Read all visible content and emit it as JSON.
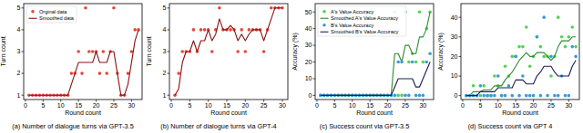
{
  "chart_data": [
    {
      "type": "line",
      "title": "(a) Number of dialogue turns via GPT-3.5",
      "x_label": "Round count",
      "y_label": "Turn count",
      "x": [
        1,
        2,
        3,
        4,
        5,
        6,
        7,
        8,
        9,
        10,
        11,
        12,
        13,
        14,
        15,
        16,
        17,
        18,
        19,
        20,
        21,
        22,
        23,
        24,
        25,
        26,
        27,
        28,
        29,
        30,
        31,
        32
      ],
      "xlim": [
        -0.5,
        33
      ],
      "xticks": [
        0,
        5,
        10,
        15,
        20,
        25,
        30
      ],
      "ylim": [
        0.8,
        5.2
      ],
      "yticks": [
        1,
        2,
        3,
        4,
        5
      ],
      "legend": "upper left",
      "series": [
        {
          "name": "Orginal data",
          "type": "scatter",
          "marker": "circle",
          "color": "#e8453c",
          "values": [
            1,
            1,
            1,
            1,
            1,
            1,
            1,
            1,
            1,
            1,
            1,
            1,
            2,
            2,
            3,
            2,
            5,
            3,
            3,
            3,
            2,
            3,
            2,
            3,
            5,
            2,
            1,
            1,
            2,
            3,
            4,
            4
          ]
        },
        {
          "name": "Smoothed data",
          "type": "line",
          "color": "#8b1010",
          "values": [
            1,
            1,
            1,
            1,
            1,
            1,
            1,
            1,
            1,
            1,
            1,
            1,
            1.5,
            2,
            2.5,
            2.5,
            2.5,
            2.5,
            2.5,
            3,
            2.5,
            2.5,
            2.5,
            3,
            3,
            2,
            1,
            1,
            1.5,
            2.5,
            3.5,
            4
          ]
        }
      ]
    },
    {
      "type": "line",
      "title": "(b) Number of dialogue turns via GPT-4",
      "x_label": "Round count",
      "y_label": "Turn count",
      "x": [
        1,
        2,
        3,
        4,
        5,
        6,
        7,
        8,
        9,
        10,
        11,
        12,
        13,
        14,
        15,
        16,
        17,
        18,
        19,
        20,
        21,
        22,
        23,
        24,
        25,
        26,
        27,
        28,
        29,
        30
      ],
      "xlim": [
        -0.5,
        31.5
      ],
      "xticks": [
        0,
        5,
        10,
        15,
        20,
        25,
        30
      ],
      "ylim": [
        0.8,
        5.2
      ],
      "yticks": [
        1,
        2,
        3,
        4,
        5
      ],
      "series": [
        {
          "type": "scatter",
          "marker": "circle",
          "color": "#e8453c",
          "values": [
            1,
            2,
            3,
            3,
            3,
            4,
            3,
            4,
            4,
            4,
            3,
            4,
            5,
            4,
            4,
            4,
            4,
            3,
            4,
            3,
            4,
            4,
            4,
            4,
            3,
            4,
            5,
            5,
            5,
            5
          ]
        },
        {
          "type": "line",
          "color": "#8b1010",
          "values": [
            1,
            1.3,
            2.5,
            3,
            3,
            3.5,
            3,
            3.5,
            3.5,
            4,
            3.5,
            3.8,
            4.5,
            4,
            4,
            4.2,
            4,
            3.5,
            3.8,
            3.5,
            3.8,
            4,
            4,
            4,
            3.5,
            4,
            4.5,
            5,
            5,
            5
          ]
        }
      ]
    },
    {
      "type": "line",
      "title": "(c) Success count via GPT-3.5",
      "x_label": "Round count",
      "y_label": "Accuracy (%)",
      "x": [
        1,
        2,
        3,
        4,
        5,
        6,
        7,
        8,
        9,
        10,
        11,
        12,
        13,
        14,
        15,
        16,
        17,
        18,
        19,
        20,
        21,
        22,
        23,
        24,
        25,
        26,
        27,
        28,
        29,
        30,
        31,
        32
      ],
      "xlim": [
        -0.5,
        33
      ],
      "xticks": [
        0,
        5,
        10,
        15,
        20,
        25,
        30
      ],
      "ylim": [
        -2.5,
        55
      ],
      "yticks": [
        0,
        10,
        20,
        30,
        40,
        50
      ],
      "legend": "upper left",
      "series": [
        {
          "name": "A's Value Accuracy",
          "type": "scatter",
          "marker": "circle",
          "color": "#55d055",
          "values": [
            0,
            0,
            0,
            0,
            0,
            0,
            0,
            0,
            0,
            0,
            0,
            0,
            0,
            0,
            0,
            0,
            0,
            0,
            0,
            0,
            0,
            50,
            0,
            0,
            50,
            20,
            25,
            20,
            50,
            20,
            40,
            50
          ]
        },
        {
          "name": "Smoothed A's Value Accuracy",
          "type": "line",
          "color": "#2e8b2e",
          "values": [
            0,
            0,
            0,
            0,
            0,
            0,
            0,
            0,
            0,
            0,
            0,
            0,
            0,
            0,
            0,
            0,
            0,
            0,
            0,
            0,
            0,
            25,
            25,
            20,
            30,
            30,
            25,
            25,
            35,
            35,
            40,
            50
          ]
        },
        {
          "name": "B's Value Accuracy",
          "type": "scatter",
          "marker": "circle",
          "color": "#3a9ad9",
          "values": [
            0,
            0,
            0,
            0,
            0,
            0,
            0,
            0,
            0,
            0,
            0,
            0,
            0,
            0,
            0,
            0,
            0,
            0,
            0,
            0,
            0,
            0,
            20,
            20,
            0,
            0,
            20,
            0,
            0,
            0,
            20,
            25
          ]
        },
        {
          "name": "Smoothed B's Value Accuracy",
          "type": "line",
          "color": "#1c1c5c",
          "values": [
            0,
            0,
            0,
            0,
            0,
            0,
            0,
            0,
            0,
            0,
            0,
            0,
            0,
            0,
            0,
            0,
            0,
            0,
            0,
            0,
            0,
            5,
            10,
            10,
            10,
            10,
            10,
            5,
            5,
            10,
            15,
            20
          ]
        }
      ]
    },
    {
      "type": "line",
      "title": "(d) Success count via GPT 4",
      "x_label": "Round count",
      "y_label": "Accuracy (%)",
      "x": [
        1,
        2,
        3,
        4,
        5,
        6,
        7,
        8,
        9,
        10,
        11,
        12,
        13,
        14,
        15,
        16,
        17,
        18,
        19,
        20,
        21,
        22,
        23,
        24,
        25,
        26,
        27,
        28,
        29,
        30,
        31,
        32
      ],
      "xlim": [
        -0.5,
        33
      ],
      "xticks": [
        0,
        5,
        10,
        15,
        20,
        25,
        30
      ],
      "ylim": [
        -2,
        47
      ],
      "yticks": [
        0,
        10,
        20,
        30,
        40
      ],
      "series": [
        {
          "type": "scatter",
          "marker": "circle",
          "color": "#55d055",
          "values": [
            0,
            0,
            5,
            0,
            0,
            5,
            0,
            0,
            10,
            5,
            0,
            15,
            10,
            20,
            20,
            25,
            25,
            35,
            15,
            20,
            30,
            25,
            20,
            20,
            10,
            20,
            40,
            30,
            25,
            30,
            35,
            25
          ]
        },
        {
          "type": "line",
          "color": "#2e8b2e",
          "values": [
            0,
            0,
            2,
            2,
            2,
            3,
            3,
            3,
            5,
            5,
            5,
            8,
            10,
            12,
            15,
            18,
            20,
            22,
            20,
            20,
            22,
            22,
            22,
            20,
            18,
            20,
            25,
            28,
            28,
            28,
            30,
            30
          ]
        },
        {
          "type": "scatter",
          "marker": "circle",
          "color": "#3a9ad9",
          "values": [
            0,
            0,
            0,
            0,
            5,
            0,
            0,
            0,
            0,
            10,
            0,
            0,
            5,
            0,
            20,
            0,
            10,
            0,
            0,
            0,
            30,
            0,
            40,
            0,
            20,
            0,
            0,
            10,
            0,
            0,
            25,
            20
          ]
        },
        {
          "type": "line",
          "color": "#1c1c5c",
          "values": [
            0,
            0,
            0,
            0,
            2,
            2,
            2,
            2,
            2,
            4,
            4,
            4,
            4,
            4,
            8,
            8,
            8,
            6,
            6,
            6,
            10,
            12,
            15,
            15,
            15,
            12,
            10,
            10,
            10,
            10,
            15,
            18
          ]
        }
      ]
    }
  ]
}
